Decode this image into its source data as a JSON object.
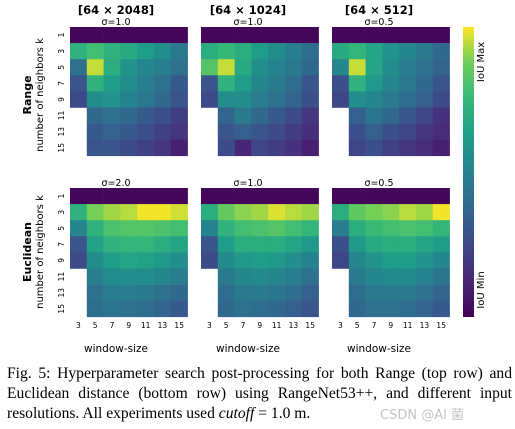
{
  "figure": {
    "column_titles": [
      "[64 × 2048]",
      "[64 × 1024]",
      "[64 × 512]"
    ],
    "row_labels": [
      "Range",
      "Euclidean"
    ],
    "ylabel": "number of neighbors k",
    "xlabel": "window-size",
    "colorbar": {
      "max_label": "IoU Max",
      "min_label": "IoU Min"
    },
    "sigma_labels": [
      [
        "σ=1.0",
        "σ=1.0",
        "σ=0.5"
      ],
      [
        "σ=2.0",
        "σ=1.0",
        "σ=0.5"
      ]
    ]
  },
  "chart_data": {
    "type": "heatmap",
    "x": [
      3,
      5,
      7,
      9,
      11,
      13,
      15
    ],
    "y": [
      1,
      3,
      5,
      7,
      9,
      11,
      13,
      15
    ],
    "xlabel": "window-size",
    "ylabel": "number of neighbors k",
    "colorbar": [
      "IoU Min",
      "IoU Max"
    ],
    "panels": [
      {
        "row": "Range",
        "col": "[64 × 2048]",
        "sigma": "σ=1.0",
        "values": [
          [
            0.02,
            0.02,
            0.02,
            0.02,
            0.02,
            0.02,
            0.02
          ],
          [
            0.72,
            0.78,
            0.72,
            0.68,
            0.62,
            0.55,
            0.45
          ],
          [
            0.42,
            0.95,
            0.7,
            0.58,
            0.52,
            0.48,
            0.42
          ],
          [
            0.3,
            0.72,
            0.62,
            0.55,
            0.48,
            0.42,
            0.32
          ],
          [
            0.25,
            0.55,
            0.58,
            0.5,
            0.45,
            0.38,
            0.3
          ],
          [
            null,
            0.38,
            0.42,
            0.38,
            0.32,
            0.28,
            0.2
          ],
          [
            null,
            0.32,
            0.36,
            0.32,
            0.28,
            0.22,
            0.18
          ],
          [
            null,
            0.3,
            0.3,
            0.26,
            0.22,
            0.18,
            0.1
          ]
        ]
      },
      {
        "row": "Range",
        "col": "[64 × 1024]",
        "sigma": "σ=1.0",
        "values": [
          [
            0.02,
            0.02,
            0.02,
            0.02,
            0.02,
            0.02,
            0.02
          ],
          [
            0.7,
            0.75,
            0.7,
            0.62,
            0.55,
            0.48,
            0.4
          ],
          [
            0.82,
            0.95,
            0.68,
            0.56,
            0.5,
            0.45,
            0.38
          ],
          [
            0.3,
            0.72,
            0.62,
            0.52,
            0.46,
            0.4,
            0.3
          ],
          [
            0.25,
            0.55,
            0.55,
            0.48,
            0.42,
            0.36,
            0.28
          ],
          [
            null,
            0.36,
            0.46,
            0.38,
            0.32,
            0.26,
            0.18
          ],
          [
            null,
            0.3,
            0.34,
            0.3,
            0.26,
            0.2,
            0.15
          ],
          [
            null,
            0.26,
            0.12,
            0.24,
            0.2,
            0.16,
            0.1
          ]
        ]
      },
      {
        "row": "Range",
        "col": "[64 × 512]",
        "sigma": "σ=0.5",
        "values": [
          [
            0.02,
            0.02,
            0.02,
            0.02,
            0.02,
            0.02,
            0.02
          ],
          [
            0.68,
            0.74,
            0.66,
            0.58,
            0.52,
            0.46,
            0.38
          ],
          [
            0.52,
            0.95,
            0.66,
            0.55,
            0.48,
            0.42,
            0.36
          ],
          [
            0.28,
            0.72,
            0.6,
            0.52,
            0.45,
            0.38,
            0.3
          ],
          [
            0.24,
            0.55,
            0.52,
            0.46,
            0.4,
            0.34,
            0.26
          ],
          [
            null,
            0.34,
            0.44,
            0.38,
            0.3,
            0.24,
            0.16
          ],
          [
            null,
            0.28,
            0.34,
            0.28,
            0.24,
            0.18,
            0.14
          ],
          [
            null,
            0.24,
            0.28,
            0.22,
            0.18,
            0.14,
            0.1
          ]
        ]
      },
      {
        "row": "Euclidean",
        "col": "[64 × 2048]",
        "sigma": "σ=2.0",
        "values": [
          [
            0.02,
            0.02,
            0.02,
            0.02,
            0.02,
            0.02,
            0.02
          ],
          [
            0.72,
            0.88,
            0.92,
            0.94,
            0.99,
            0.99,
            0.96
          ],
          [
            0.52,
            0.72,
            0.8,
            0.82,
            0.82,
            0.8,
            0.78
          ],
          [
            0.3,
            0.64,
            0.72,
            0.74,
            0.74,
            0.7,
            0.66
          ],
          [
            0.26,
            0.55,
            0.62,
            0.66,
            0.64,
            0.6,
            0.56
          ],
          [
            null,
            0.48,
            0.55,
            0.56,
            0.55,
            0.52,
            0.48
          ],
          [
            null,
            0.42,
            0.48,
            0.48,
            0.46,
            0.42,
            0.38
          ],
          [
            null,
            0.4,
            0.44,
            0.42,
            0.4,
            0.36,
            0.32
          ]
        ]
      },
      {
        "row": "Euclidean",
        "col": "[64 × 1024]",
        "sigma": "σ=1.0",
        "values": [
          [
            0.02,
            0.02,
            0.02,
            0.02,
            0.02,
            0.02,
            0.02
          ],
          [
            0.7,
            0.85,
            0.9,
            0.92,
            0.97,
            0.94,
            0.92
          ],
          [
            0.5,
            0.72,
            0.78,
            0.8,
            0.82,
            0.78,
            0.74
          ],
          [
            0.3,
            0.62,
            0.7,
            0.7,
            0.7,
            0.66,
            0.6
          ],
          [
            0.26,
            0.54,
            0.6,
            0.62,
            0.6,
            0.56,
            0.5
          ],
          [
            null,
            0.46,
            0.52,
            0.54,
            0.52,
            0.48,
            0.42
          ],
          [
            null,
            0.4,
            0.46,
            0.46,
            0.44,
            0.4,
            0.34
          ],
          [
            null,
            0.38,
            0.42,
            0.4,
            0.38,
            0.34,
            0.3
          ]
        ]
      },
      {
        "row": "Euclidean",
        "col": "[64 × 512]",
        "sigma": "σ=0.5",
        "values": [
          [
            0.02,
            0.02,
            0.02,
            0.02,
            0.02,
            0.02,
            0.02
          ],
          [
            0.7,
            0.84,
            0.88,
            0.9,
            0.94,
            0.92,
            0.99
          ],
          [
            0.48,
            0.7,
            0.76,
            0.78,
            0.8,
            0.78,
            0.74
          ],
          [
            0.28,
            0.6,
            0.68,
            0.7,
            0.7,
            0.66,
            0.62
          ],
          [
            0.24,
            0.52,
            0.58,
            0.62,
            0.62,
            0.58,
            0.52
          ],
          [
            null,
            0.46,
            0.52,
            0.54,
            0.54,
            0.5,
            0.44
          ],
          [
            null,
            0.4,
            0.46,
            0.46,
            0.46,
            0.42,
            0.36
          ],
          [
            null,
            0.38,
            0.42,
            0.42,
            0.4,
            0.36,
            0.32
          ]
        ]
      }
    ]
  },
  "caption": {
    "label": "Fig. 5:",
    "text": " Hyperparameter search post-processing for both Range (top row) and Euclidean distance (bottom row) using RangeNet53++, and different input resolutions. All experiments used ",
    "cutoff_word": "cutoff",
    "cutoff_value": " = 1.0 m."
  },
  "watermark": "CSDN @AI 菌"
}
